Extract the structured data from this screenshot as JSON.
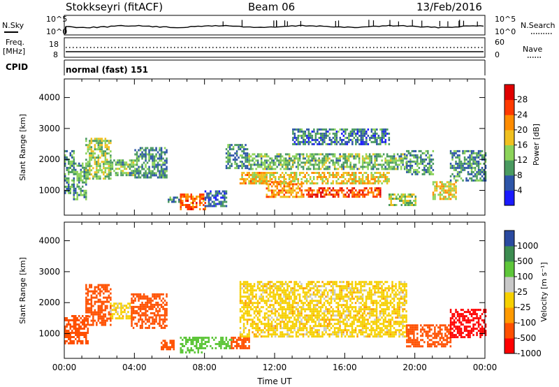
{
  "header": {
    "station": "Stokkseyri (fitACF)",
    "beam": "Beam 06",
    "date": "13/Feb/2016"
  },
  "panels": {
    "noise": {
      "left_label": "N.Sky",
      "right_label": "N.Search",
      "left_ticks": [
        "10^5",
        "10^0"
      ],
      "right_ticks": [
        "10^5",
        "10^0"
      ]
    },
    "freq": {
      "left_label_1": "Freq.",
      "left_label_2": "[MHz]",
      "right_label": "Nave",
      "left_ticks": [
        "18",
        "8"
      ],
      "right_ticks": [
        "60",
        "0"
      ]
    },
    "cpid": {
      "label": "CPID",
      "text": "normal (fast) 151"
    }
  },
  "colors": {
    "power_scale": [
      "#1a1aff",
      "#2d55a8",
      "#4a9a60",
      "#8cd35a",
      "#f0c020",
      "#ff8c00",
      "#ff3a00",
      "#e00000"
    ],
    "velocity_scale": [
      "#ff0000",
      "#ff5000",
      "#ff9a00",
      "#f6d000",
      "#c8c8c8",
      "#5ec63a",
      "#3c8c50",
      "#2a4aa0"
    ]
  },
  "chart_data": [
    {
      "type": "heatmap",
      "xlabel": "",
      "ylabel": "Slant Range [km]",
      "xlim": [
        "00:00",
        "24:00"
      ],
      "ylim": [
        200,
        4600
      ],
      "y_ticks": [
        "1000",
        "2000",
        "3000",
        "4000"
      ],
      "colorbar": {
        "label": "Power [dB]",
        "ticks": [
          "4",
          "8",
          "12",
          "16",
          "20",
          "24",
          "28"
        ]
      },
      "blobs": [
        {
          "t0": 0.0,
          "t1": 0.5,
          "r0": 900,
          "r1": 2300,
          "v": 10
        },
        {
          "t0": 0.5,
          "t1": 1.2,
          "r0": 700,
          "r1": 1900,
          "v": 11
        },
        {
          "t0": 1.2,
          "t1": 2.6,
          "r0": 1400,
          "r1": 2700,
          "v": 14
        },
        {
          "t0": 2.6,
          "t1": 4.0,
          "r0": 1500,
          "r1": 2000,
          "v": 12
        },
        {
          "t0": 4.0,
          "t1": 5.8,
          "r0": 1400,
          "r1": 2400,
          "v": 9
        },
        {
          "t0": 5.8,
          "t1": 6.6,
          "r0": 600,
          "r1": 800,
          "v": 8
        },
        {
          "t0": 6.6,
          "t1": 8.0,
          "r0": 400,
          "r1": 900,
          "v": 24
        },
        {
          "t0": 8.0,
          "t1": 9.2,
          "r0": 500,
          "r1": 1000,
          "v": 7
        },
        {
          "t0": 9.2,
          "t1": 10.4,
          "r0": 1700,
          "r1": 2500,
          "v": 9
        },
        {
          "t0": 10.0,
          "t1": 11.5,
          "r0": 1200,
          "r1": 1600,
          "v": 20
        },
        {
          "t0": 11.5,
          "t1": 13.5,
          "r0": 800,
          "r1": 1300,
          "v": 21
        },
        {
          "t0": 13.5,
          "t1": 18.0,
          "r0": 800,
          "r1": 1100,
          "v": 26
        },
        {
          "t0": 10.5,
          "t1": 18.5,
          "r0": 1200,
          "r1": 1600,
          "v": 18
        },
        {
          "t0": 10.5,
          "t1": 19.5,
          "r0": 1700,
          "r1": 2200,
          "v": 12
        },
        {
          "t0": 13.0,
          "t1": 18.5,
          "r0": 2500,
          "r1": 3000,
          "v": 8
        },
        {
          "t0": 18.5,
          "t1": 20.0,
          "r0": 500,
          "r1": 900,
          "v": 14
        },
        {
          "t0": 19.5,
          "t1": 21.0,
          "r0": 1500,
          "r1": 2300,
          "v": 10
        },
        {
          "t0": 21.0,
          "t1": 22.3,
          "r0": 700,
          "r1": 1300,
          "v": 17
        },
        {
          "t0": 22.0,
          "t1": 24.0,
          "r0": 1300,
          "r1": 2300,
          "v": 9
        }
      ]
    },
    {
      "type": "heatmap",
      "xlabel": "Time UT",
      "ylabel": "Slant Range [km]",
      "xlim": [
        "00:00",
        "24:00"
      ],
      "ylim": [
        200,
        4600
      ],
      "x_ticks": [
        "00:00",
        "04:00",
        "08:00",
        "12:00",
        "16:00",
        "20:00",
        "00:00"
      ],
      "y_ticks": [
        "1000",
        "2000",
        "3000",
        "4000"
      ],
      "colorbar": {
        "label": "Velocity [m s⁻¹]",
        "ticks": [
          "1000",
          "500",
          "100",
          "25",
          "-25",
          "-100",
          "-500",
          "-1000"
        ]
      },
      "blobs": [
        {
          "t0": 0.0,
          "t1": 1.3,
          "r0": 700,
          "r1": 1600,
          "v": -450
        },
        {
          "t0": 1.2,
          "t1": 2.6,
          "r0": 1300,
          "r1": 2600,
          "v": -300
        },
        {
          "t0": 2.6,
          "t1": 3.8,
          "r0": 1500,
          "r1": 2000,
          "v": 0
        },
        {
          "t0": 3.8,
          "t1": 5.8,
          "r0": 1200,
          "r1": 2300,
          "v": -350
        },
        {
          "t0": 5.5,
          "t1": 6.2,
          "r0": 500,
          "r1": 800,
          "v": -200
        },
        {
          "t0": 6.6,
          "t1": 7.8,
          "r0": 400,
          "r1": 900,
          "v": 400
        },
        {
          "t0": 7.8,
          "t1": 9.5,
          "r0": 500,
          "r1": 900,
          "v": 150
        },
        {
          "t0": 9.5,
          "t1": 10.5,
          "r0": 500,
          "r1": 900,
          "v": -150
        },
        {
          "t0": 10.0,
          "t1": 19.5,
          "r0": 900,
          "r1": 2700,
          "v": 0
        },
        {
          "t0": 19.5,
          "t1": 22.0,
          "r0": 600,
          "r1": 1300,
          "v": -400
        },
        {
          "t0": 22.0,
          "t1": 24.0,
          "r0": 900,
          "r1": 1800,
          "v": -700
        }
      ]
    }
  ]
}
